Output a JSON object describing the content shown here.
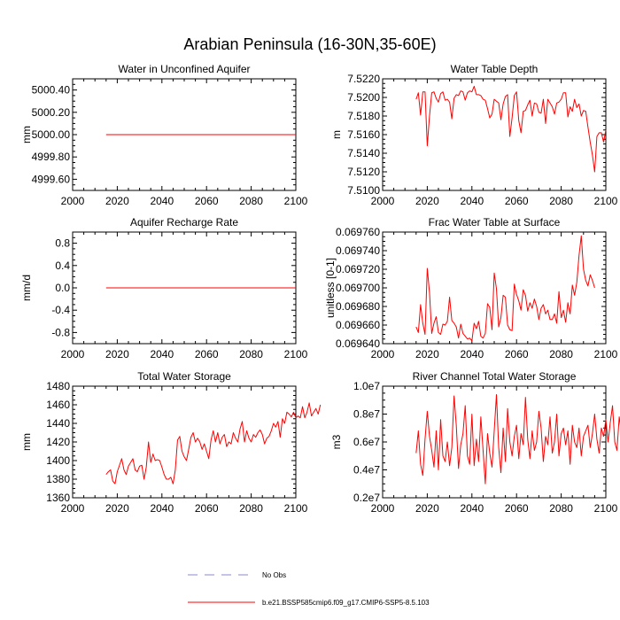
{
  "figure": {
    "title": "Arabian Peninsula (16-30N,35-60E)"
  },
  "legend": {
    "entries": [
      {
        "label": "No Obs",
        "style": "dashed",
        "color": "#8888cc"
      },
      {
        "label": "b.e21.BSSP585cmip6.f09_g17.CMIP6-SSP5-8.5.103",
        "style": "solid",
        "color": "#ff0000"
      }
    ]
  },
  "chart_data": [
    {
      "type": "line",
      "title": "Water in Unconfined Aquifer",
      "ylabel": "mm",
      "xlabel": "",
      "xlim": [
        2000,
        2100
      ],
      "ylim": [
        4999.5,
        5000.5
      ],
      "xticks": [
        2000,
        2020,
        2040,
        2060,
        2080,
        2100
      ],
      "xtick_labels": [
        "2000",
        "2020",
        "2040",
        "2060",
        "2080",
        "2100"
      ],
      "yticks": [
        4999.6,
        4999.8,
        5000.0,
        5000.2,
        5000.4
      ],
      "ytick_labels": [
        "4999.60",
        "4999.80",
        "5000.00",
        "5000.20",
        "5000.40"
      ],
      "series": [
        {
          "name": "b.e21.BSSP585cmip6.f09_g17.CMIP6-SSP5-8.5.103",
          "color": "#ff0000",
          "x": [
            2015,
            2100
          ],
          "values": [
            5000.0,
            5000.0
          ]
        }
      ]
    },
    {
      "type": "line",
      "title": "Water Table Depth",
      "ylabel": "m",
      "xlabel": "",
      "xlim": [
        2000,
        2100
      ],
      "ylim": [
        7.51,
        7.522
      ],
      "xticks": [
        2000,
        2020,
        2040,
        2060,
        2080,
        2100
      ],
      "xtick_labels": [
        "2000",
        "2020",
        "2040",
        "2060",
        "2080",
        "2100"
      ],
      "yticks": [
        7.51,
        7.512,
        7.514,
        7.516,
        7.518,
        7.52,
        7.522
      ],
      "ytick_labels": [
        "7.5100",
        "7.5120",
        "7.5140",
        "7.5160",
        "7.5180",
        "7.5200",
        "7.5220"
      ],
      "series": [
        {
          "name": "b.e21.BSSP585cmip6.f09_g17.CMIP6-SSP5-8.5.103",
          "color": "#ff0000",
          "x_start": 2015,
          "x_step": 1,
          "values": [
            7.5198,
            7.5205,
            7.5181,
            7.5206,
            7.5206,
            7.5148,
            7.518,
            7.5205,
            7.5206,
            7.5199,
            7.5195,
            7.5204,
            7.5206,
            7.5197,
            7.5198,
            7.5195,
            7.5177,
            7.5199,
            7.5203,
            7.5202,
            7.5207,
            7.5206,
            7.5197,
            7.5205,
            7.5207,
            7.5206,
            7.5212,
            7.5203,
            7.5203,
            7.5202,
            7.5198,
            7.5197,
            7.5188,
            7.5178,
            7.5182,
            7.5198,
            7.5196,
            7.5194,
            7.5176,
            7.5193,
            7.5201,
            7.5203,
            7.5158,
            7.5178,
            7.5202,
            7.5206,
            7.5175,
            7.5162,
            7.5185,
            7.5186,
            7.5192,
            7.5197,
            7.518,
            7.5194,
            7.5193,
            7.5184,
            7.5183,
            7.5198,
            7.5172,
            7.5198,
            7.5194,
            7.519,
            7.5182,
            7.5194,
            7.5195,
            7.5198,
            7.5205,
            7.5205,
            7.5179,
            7.519,
            7.5185,
            7.5198,
            7.5189,
            7.5193,
            7.518,
            7.5186,
            7.5185,
            7.5168,
            7.5152,
            7.5138,
            7.512,
            7.5158,
            7.5162,
            7.5162,
            7.5152,
            7.5165
          ]
        }
      ]
    },
    {
      "type": "line",
      "title": "Aquifer Recharge Rate",
      "ylabel": "mm/d",
      "xlabel": "",
      "xlim": [
        2000,
        2100
      ],
      "ylim": [
        -1.0,
        1.0
      ],
      "xticks": [
        2000,
        2020,
        2040,
        2060,
        2080,
        2100
      ],
      "xtick_labels": [
        "2000",
        "2020",
        "2040",
        "2060",
        "2080",
        "2100"
      ],
      "yticks": [
        -0.8,
        -0.4,
        0.0,
        0.4,
        0.8
      ],
      "ytick_labels": [
        "-0.8",
        "-0.4",
        "0.0",
        "0.4",
        "0.8"
      ],
      "series": [
        {
          "name": "b.e21.BSSP585cmip6.f09_g17.CMIP6-SSP5-8.5.103",
          "color": "#ff0000",
          "x": [
            2015,
            2100
          ],
          "values": [
            0.0,
            0.0
          ]
        }
      ]
    },
    {
      "type": "line",
      "title": "Frac Water Table at Surface",
      "ylabel": "unitless [0-1]",
      "xlabel": "",
      "xlim": [
        2000,
        2100
      ],
      "ylim": [
        0.06964,
        0.06976
      ],
      "xticks": [
        2000,
        2020,
        2040,
        2060,
        2080,
        2100
      ],
      "xtick_labels": [
        "2000",
        "2020",
        "2040",
        "2060",
        "2080",
        "2100"
      ],
      "yticks": [
        0.06964,
        0.06966,
        0.06968,
        0.0697,
        0.06972,
        0.06974,
        0.06976
      ],
      "ytick_labels": [
        "0.069640",
        "0.069660",
        "0.069680",
        "0.069700",
        "0.069720",
        "0.069740",
        "0.069760"
      ],
      "series": [
        {
          "name": "b.e21.BSSP585cmip6.f09_g17.CMIP6-SSP5-8.5.103",
          "color": "#ff0000",
          "x_start": 2015,
          "x_step": 1,
          "values": [
            0.069658,
            0.069652,
            0.069682,
            0.069662,
            0.06965,
            0.069721,
            0.069695,
            0.069651,
            0.069662,
            0.069669,
            0.069652,
            0.06965,
            0.069661,
            0.06966,
            0.069664,
            0.06969,
            0.069665,
            0.069662,
            0.069658,
            0.069646,
            0.069661,
            0.069651,
            0.069648,
            0.069645,
            0.069646,
            0.069643,
            0.069662,
            0.069656,
            0.069664,
            0.069648,
            0.069646,
            0.069651,
            0.069683,
            0.069679,
            0.069655,
            0.069716,
            0.069699,
            0.069658,
            0.069668,
            0.069692,
            0.06969,
            0.06966,
            0.069655,
            0.069654,
            0.069704,
            0.069693,
            0.069686,
            0.069676,
            0.069698,
            0.069692,
            0.069675,
            0.069684,
            0.069678,
            0.069688,
            0.06968,
            0.069666,
            0.069678,
            0.069682,
            0.069672,
            0.069676,
            0.069666,
            0.069666,
            0.069672,
            0.069662,
            0.069696,
            0.069668,
            0.069676,
            0.069663,
            0.069684,
            0.069672,
            0.069703,
            0.069692,
            0.069706,
            0.069735,
            0.069756,
            0.06972,
            0.069708,
            0.069702,
            0.069714,
            0.069708,
            0.0697
          ]
        }
      ]
    },
    {
      "type": "line",
      "title": "Total Water Storage",
      "ylabel": "mm",
      "xlabel": "",
      "xlim": [
        2000,
        2100
      ],
      "ylim": [
        1360,
        1480
      ],
      "xticks": [
        2000,
        2020,
        2040,
        2060,
        2080,
        2100
      ],
      "xtick_labels": [
        "2000",
        "2020",
        "2040",
        "2060",
        "2080",
        "2100"
      ],
      "yticks": [
        1360,
        1380,
        1400,
        1420,
        1440,
        1460,
        1480
      ],
      "ytick_labels": [
        "1360",
        "1380",
        "1400",
        "1420",
        "1440",
        "1460",
        "1480"
      ],
      "series": [
        {
          "name": "b.e21.BSSP585cmip6.f09_g17.CMIP6-SSP5-8.5.103",
          "color": "#ff0000",
          "x_start": 2015,
          "x_step": 1,
          "values": [
            1385,
            1388,
            1390,
            1378,
            1375,
            1388,
            1395,
            1402,
            1390,
            1385,
            1394,
            1398,
            1402,
            1390,
            1388,
            1394,
            1395,
            1380,
            1393,
            1420,
            1398,
            1407,
            1400,
            1401,
            1400,
            1393,
            1385,
            1380,
            1380,
            1382,
            1375,
            1390,
            1422,
            1426,
            1410,
            1404,
            1400,
            1412,
            1425,
            1430,
            1420,
            1424,
            1420,
            1412,
            1418,
            1410,
            1402,
            1422,
            1432,
            1420,
            1430,
            1418,
            1425,
            1428,
            1415,
            1420,
            1418,
            1430,
            1424,
            1420,
            1434,
            1442,
            1420,
            1432,
            1424,
            1420,
            1428,
            1425,
            1430,
            1433,
            1428,
            1418,
            1424,
            1426,
            1432,
            1440,
            1436,
            1442,
            1425,
            1445,
            1440,
            1452,
            1450,
            1447,
            1452,
            1446,
            1448,
            1446,
            1458,
            1446,
            1452,
            1462,
            1448,
            1452,
            1456,
            1450,
            1460
          ]
        }
      ]
    },
    {
      "type": "line",
      "title": "River Channel Total Water Storage",
      "ylabel": "m3",
      "xlabel": "",
      "xlim": [
        2000,
        2100
      ],
      "ylim": [
        2000000,
        10000000
      ],
      "xticks": [
        2000,
        2020,
        2040,
        2060,
        2080,
        2100
      ],
      "xtick_labels": [
        "2000",
        "2020",
        "2040",
        "2060",
        "2080",
        "2100"
      ],
      "yticks": [
        2000000,
        4000000,
        6000000,
        8000000,
        10000000
      ],
      "ytick_labels": [
        "0.2e7",
        "0.4e7",
        "0.6e7",
        "0.8e7",
        "1.0e7"
      ],
      "series": [
        {
          "name": "b.e21.BSSP585cmip6.f09_g17.CMIP6-SSP5-8.5.103",
          "color": "#ff0000",
          "x_start": 2015,
          "x_step": 1,
          "values": [
            5200000,
            6800000,
            4400000,
            3600000,
            6200000,
            8200000,
            6400000,
            5400000,
            4200000,
            6800000,
            4000000,
            7600000,
            5000000,
            4600000,
            6000000,
            4300000,
            5600000,
            9300000,
            7200000,
            4100000,
            5800000,
            6600000,
            8600000,
            5000000,
            4400000,
            8000000,
            4300000,
            6200000,
            4600000,
            7800000,
            5400000,
            3000000,
            6600000,
            5200000,
            4200000,
            6800000,
            9400000,
            5600000,
            3800000,
            7000000,
            4600000,
            8400000,
            6000000,
            5000000,
            6400000,
            7200000,
            4800000,
            6600000,
            5800000,
            9200000,
            6200000,
            4800000,
            6800000,
            5400000,
            6000000,
            8200000,
            7000000,
            4600000,
            6400000,
            5800000,
            7800000,
            5200000,
            6000000,
            8000000,
            5000000,
            6600000,
            7000000,
            5800000,
            6800000,
            4400000,
            7200000,
            6000000,
            5600000,
            7000000,
            5000000,
            6400000,
            6800000,
            7200000,
            5600000,
            6600000,
            8000000,
            6200000,
            5200000,
            7000000,
            6400000,
            7600000,
            6000000,
            7400000,
            8600000,
            6000000,
            5400000,
            7800000,
            6600000,
            6200000,
            7200000,
            6800000,
            6000000,
            9600000
          ]
        }
      ]
    }
  ]
}
